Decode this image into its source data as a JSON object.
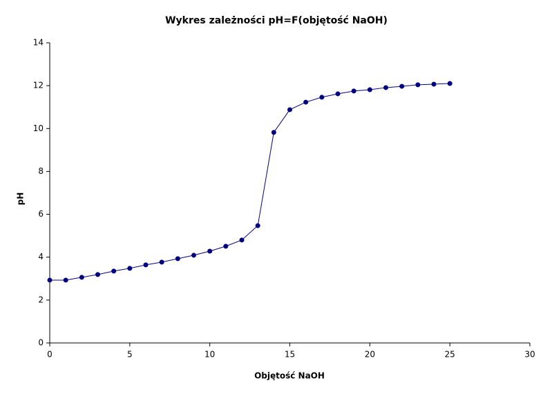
{
  "chart_data": {
    "type": "line",
    "title": "Wykres zależności pH=F(objętość NaOH)",
    "x_label": "Objętość NaOH",
    "y_label": "pH",
    "x": [
      0,
      1,
      2,
      3,
      4,
      5,
      6,
      7,
      8,
      9,
      10,
      11,
      12,
      13,
      14,
      15,
      16,
      17,
      18,
      19,
      20,
      21,
      22,
      23,
      24,
      25
    ],
    "series": [
      {
        "color": "#000080",
        "values": [
          2.93,
          2.93,
          3.06,
          3.19,
          3.35,
          3.48,
          3.64,
          3.77,
          3.93,
          4.09,
          4.28,
          4.51,
          4.8,
          5.47,
          9.82,
          10.88,
          11.23,
          11.46,
          11.62,
          11.75,
          11.81,
          11.91,
          11.97,
          12.04,
          12.07,
          12.1
        ]
      }
    ],
    "xlim": [
      0,
      30
    ],
    "xticks": [
      0,
      5,
      10,
      15,
      20,
      25,
      30
    ],
    "ylim": [
      0,
      14
    ],
    "yticks": [
      0,
      2,
      4,
      6,
      8,
      10,
      12,
      14
    ],
    "grid": false
  }
}
